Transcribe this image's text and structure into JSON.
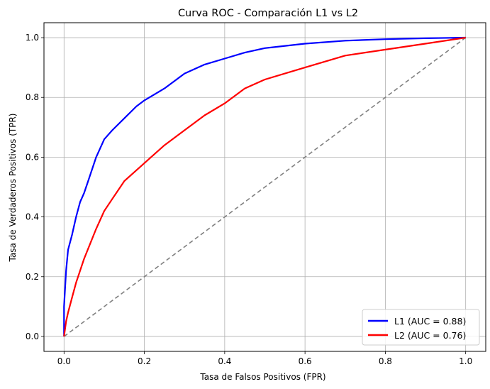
{
  "chart_data": {
    "type": "line",
    "title": "Curva ROC - Comparación L1 vs L2",
    "xlabel": "Tasa de Falsos Positivos (FPR)",
    "ylabel": "Tasa de Verdaderos Positivos (TPR)",
    "xlim": [
      -0.05,
      1.05
    ],
    "ylim": [
      -0.05,
      1.05
    ],
    "xticks": [
      0.0,
      0.2,
      0.4,
      0.6,
      0.8,
      1.0
    ],
    "yticks": [
      0.0,
      0.2,
      0.4,
      0.6,
      0.8,
      1.0
    ],
    "xtick_labels": [
      "0.0",
      "0.2",
      "0.4",
      "0.6",
      "0.8",
      "1.0"
    ],
    "ytick_labels": [
      "0.0",
      "0.2",
      "0.4",
      "0.6",
      "0.8",
      "1.0"
    ],
    "grid": true,
    "legend_position": "lower-right",
    "series": [
      {
        "name": "L1 (AUC = 0.88)",
        "color": "#0000ff",
        "x": [
          0.0,
          0.0,
          0.005,
          0.01,
          0.02,
          0.03,
          0.04,
          0.05,
          0.06,
          0.08,
          0.1,
          0.12,
          0.15,
          0.18,
          0.2,
          0.25,
          0.3,
          0.35,
          0.4,
          0.45,
          0.5,
          0.6,
          0.7,
          0.8,
          0.9,
          1.0
        ],
        "y": [
          0.0,
          0.1,
          0.22,
          0.29,
          0.34,
          0.4,
          0.45,
          0.48,
          0.52,
          0.6,
          0.66,
          0.69,
          0.73,
          0.77,
          0.79,
          0.83,
          0.88,
          0.91,
          0.93,
          0.95,
          0.965,
          0.98,
          0.99,
          0.995,
          0.998,
          1.0
        ]
      },
      {
        "name": "L2 (AUC = 0.76)",
        "color": "#ff0000",
        "x": [
          0.0,
          0.005,
          0.01,
          0.02,
          0.03,
          0.05,
          0.08,
          0.1,
          0.12,
          0.15,
          0.2,
          0.25,
          0.3,
          0.35,
          0.4,
          0.45,
          0.5,
          0.6,
          0.7,
          0.8,
          0.9,
          1.0
        ],
        "y": [
          0.0,
          0.05,
          0.08,
          0.13,
          0.18,
          0.26,
          0.36,
          0.42,
          0.46,
          0.52,
          0.58,
          0.64,
          0.69,
          0.74,
          0.78,
          0.83,
          0.86,
          0.9,
          0.94,
          0.96,
          0.98,
          1.0
        ]
      },
      {
        "name": "",
        "color": "#808080",
        "dashed": true,
        "x": [
          0.0,
          1.0
        ],
        "y": [
          0.0,
          1.0
        ]
      }
    ]
  }
}
